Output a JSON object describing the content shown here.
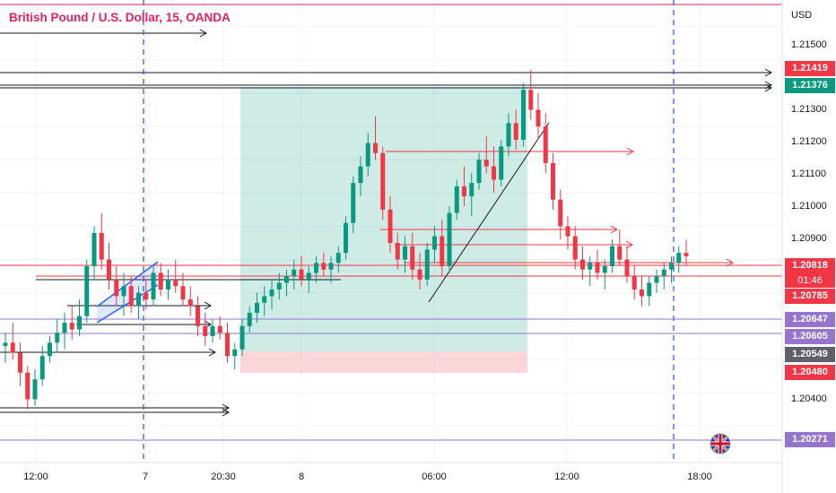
{
  "chart_title": "British Pound / U.S. Dollar, 15, OANDA",
  "axis": {
    "currency": "USD",
    "y_ticks": [
      "1.21500",
      "1.21300",
      "1.21200",
      "1.21100",
      "1.21000",
      "1.20900",
      "1.20400"
    ],
    "x_ticks": [
      "12:00",
      "7",
      "20:30",
      "8",
      "06:00",
      "12:00",
      "18:00"
    ]
  },
  "price_tags": [
    {
      "value": "1.21419",
      "color": "#f23645"
    },
    {
      "value": "1.21376",
      "color": "#089981"
    },
    {
      "value": "1.20818",
      "color": "#f23645"
    },
    {
      "value": "1.20785",
      "color": "#f23645"
    },
    {
      "value": "1.20647",
      "color": "#9575cd"
    },
    {
      "value": "1.20605",
      "color": "#9575cd"
    },
    {
      "value": "1.20549",
      "color": "#5d606b"
    },
    {
      "value": "1.20480",
      "color": "#f23645"
    },
    {
      "value": "1.20271",
      "color": "#9575cd"
    }
  ],
  "countdown": "01:46",
  "colors": {
    "up": "#089981",
    "down": "#f23645",
    "accent": "#e91e63"
  },
  "chart_data": {
    "type": "candlestick",
    "symbol": "GBPUSD",
    "interval": "15",
    "ylim": [
      1.2019,
      1.2158
    ],
    "ohlc": [
      [
        1.2054,
        1.2058,
        1.2049,
        1.2055
      ],
      [
        1.2055,
        1.2061,
        1.205,
        1.2052
      ],
      [
        1.2052,
        1.2055,
        1.2042,
        1.2046
      ],
      [
        1.2046,
        1.2048,
        1.2035,
        1.2038
      ],
      [
        1.2038,
        1.2047,
        1.2036,
        1.2044
      ],
      [
        1.2044,
        1.2054,
        1.2042,
        1.2051
      ],
      [
        1.2051,
        1.2057,
        1.2049,
        1.2055
      ],
      [
        1.2055,
        1.2062,
        1.2052,
        1.2058
      ],
      [
        1.2058,
        1.2064,
        1.2053,
        1.2061
      ],
      [
        1.2061,
        1.2066,
        1.2056,
        1.2059
      ],
      [
        1.2059,
        1.2068,
        1.2057,
        1.2063
      ],
      [
        1.2063,
        1.208,
        1.2061,
        1.2078
      ],
      [
        1.2078,
        1.209,
        1.2074,
        1.2088
      ],
      [
        1.2088,
        1.2094,
        1.2077,
        1.208
      ],
      [
        1.208,
        1.2085,
        1.2071,
        1.2074
      ],
      [
        1.2074,
        1.2078,
        1.2066,
        1.2069
      ],
      [
        1.2069,
        1.2076,
        1.2063,
        1.2072
      ],
      [
        1.2072,
        1.2075,
        1.2064,
        1.2066
      ],
      [
        1.2066,
        1.2072,
        1.2062,
        1.207
      ],
      [
        1.207,
        1.2074,
        1.2065,
        1.2068
      ],
      [
        1.2068,
        1.2078,
        1.2066,
        1.2076
      ],
      [
        1.2076,
        1.2079,
        1.2069,
        1.2071
      ],
      [
        1.2071,
        1.2077,
        1.2068,
        1.2074
      ],
      [
        1.2074,
        1.208,
        1.207,
        1.2072
      ],
      [
        1.2072,
        1.2076,
        1.2066,
        1.2068
      ],
      [
        1.2068,
        1.2072,
        1.2063,
        1.2066
      ],
      [
        1.2066,
        1.2069,
        1.2057,
        1.206
      ],
      [
        1.206,
        1.2064,
        1.2054,
        1.2057
      ],
      [
        1.2057,
        1.2062,
        1.2055,
        1.206
      ],
      [
        1.206,
        1.2063,
        1.2056,
        1.2058
      ],
      [
        1.2058,
        1.2061,
        1.2049,
        1.2051
      ],
      [
        1.2051,
        1.2055,
        1.2047,
        1.2053
      ],
      [
        1.2053,
        1.2062,
        1.2051,
        1.206
      ],
      [
        1.206,
        1.2066,
        1.2058,
        1.2064
      ],
      [
        1.2064,
        1.207,
        1.2061,
        1.2067
      ],
      [
        1.2067,
        1.2072,
        1.2063,
        1.2069
      ],
      [
        1.2069,
        1.2074,
        1.2065,
        1.2071
      ],
      [
        1.2071,
        1.2076,
        1.2068,
        1.2073
      ],
      [
        1.2073,
        1.2077,
        1.2069,
        1.2075
      ],
      [
        1.2075,
        1.208,
        1.2071,
        1.2077
      ],
      [
        1.2077,
        1.2081,
        1.2072,
        1.2074
      ],
      [
        1.2074,
        1.2078,
        1.207,
        1.2076
      ],
      [
        1.2076,
        1.2081,
        1.2073,
        1.2079
      ],
      [
        1.2079,
        1.2082,
        1.2075,
        1.2077
      ],
      [
        1.2077,
        1.2081,
        1.2073,
        1.2079
      ],
      [
        1.2079,
        1.2084,
        1.2076,
        1.2082
      ],
      [
        1.2082,
        1.2093,
        1.208,
        1.2091
      ],
      [
        1.2091,
        1.2105,
        1.2088,
        1.2103
      ],
      [
        1.2103,
        1.2111,
        1.2099,
        1.2108
      ],
      [
        1.2108,
        1.2118,
        1.2105,
        1.2115
      ],
      [
        1.2115,
        1.2123,
        1.211,
        1.2112
      ],
      [
        1.2112,
        1.2114,
        1.2092,
        1.2095
      ],
      [
        1.2095,
        1.2099,
        1.2082,
        1.2085
      ],
      [
        1.2085,
        1.2088,
        1.2077,
        1.208
      ],
      [
        1.208,
        1.2087,
        1.2076,
        1.2084
      ],
      [
        1.2084,
        1.2088,
        1.2074,
        1.2077
      ],
      [
        1.2077,
        1.2082,
        1.2071,
        1.2074
      ],
      [
        1.2074,
        1.2085,
        1.2072,
        1.2083
      ],
      [
        1.2083,
        1.209,
        1.2079,
        1.2087
      ],
      [
        1.2087,
        1.2092,
        1.2075,
        1.2078
      ],
      [
        1.2078,
        1.2096,
        1.2076,
        1.2094
      ],
      [
        1.2094,
        1.2104,
        1.2092,
        1.2102
      ],
      [
        1.2102,
        1.2108,
        1.2096,
        1.2099
      ],
      [
        1.2099,
        1.2106,
        1.2093,
        1.2103
      ],
      [
        1.2103,
        1.2112,
        1.2101,
        1.211
      ],
      [
        1.211,
        1.2117,
        1.2106,
        1.2108
      ],
      [
        1.2108,
        1.2114,
        1.21,
        1.2104
      ],
      [
        1.2104,
        1.2116,
        1.2102,
        1.2114
      ],
      [
        1.2114,
        1.2124,
        1.2111,
        1.2121
      ],
      [
        1.2121,
        1.2125,
        1.2113,
        1.2116
      ],
      [
        1.2116,
        1.2133,
        1.2114,
        1.2131
      ],
      [
        1.2131,
        1.2137,
        1.2122,
        1.2125
      ],
      [
        1.2125,
        1.213,
        1.2116,
        1.212
      ],
      [
        1.212,
        1.2124,
        1.2106,
        1.2109
      ],
      [
        1.2109,
        1.2112,
        1.2095,
        1.2098
      ],
      [
        1.2098,
        1.2101,
        1.2086,
        1.209
      ],
      [
        1.209,
        1.2093,
        1.2083,
        1.2087
      ],
      [
        1.2087,
        1.209,
        1.2077,
        1.208
      ],
      [
        1.208,
        1.2084,
        1.2074,
        1.2077
      ],
      [
        1.2077,
        1.2081,
        1.2072,
        1.2079
      ],
      [
        1.2079,
        1.2083,
        1.2074,
        1.2076
      ],
      [
        1.2076,
        1.208,
        1.2071,
        1.2078
      ],
      [
        1.2078,
        1.2086,
        1.2076,
        1.2084
      ],
      [
        1.2084,
        1.2089,
        1.2078,
        1.208
      ],
      [
        1.208,
        1.2084,
        1.2073,
        1.2075
      ],
      [
        1.2075,
        1.2078,
        1.2068,
        1.2071
      ],
      [
        1.2071,
        1.2075,
        1.2066,
        1.2069
      ],
      [
        1.2069,
        1.2075,
        1.2066,
        1.2073
      ],
      [
        1.2073,
        1.2077,
        1.207,
        1.2075
      ],
      [
        1.2075,
        1.2079,
        1.2071,
        1.2077
      ],
      [
        1.2077,
        1.2081,
        1.2073,
        1.2079
      ],
      [
        1.2079,
        1.2084,
        1.2076,
        1.2082
      ],
      [
        1.2082,
        1.2086,
        1.2078,
        1.2081
      ]
    ]
  }
}
